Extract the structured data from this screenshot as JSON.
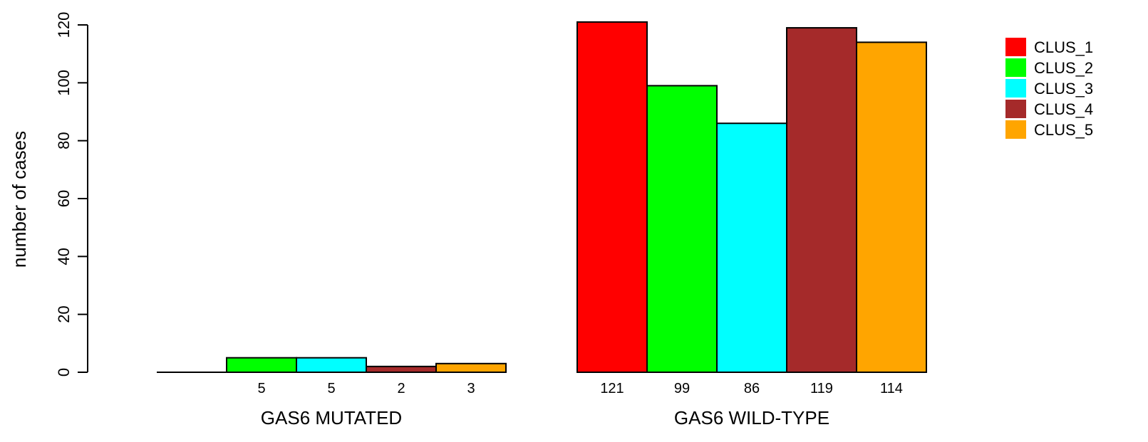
{
  "chart_data": {
    "type": "bar",
    "ylabel": "number of cases",
    "ylim": [
      0,
      120
    ],
    "yticks": [
      0,
      20,
      40,
      60,
      80,
      100,
      120
    ],
    "groups": [
      {
        "label": "GAS6 MUTATED",
        "values": [
          0,
          5,
          5,
          2,
          3
        ],
        "value_labels": [
          "",
          "5",
          "5",
          "2",
          "3"
        ]
      },
      {
        "label": "GAS6 WILD-TYPE",
        "values": [
          121,
          99,
          86,
          119,
          114
        ],
        "value_labels": [
          "121",
          "99",
          "86",
          "119",
          "114"
        ]
      }
    ],
    "series": [
      {
        "name": "CLUS_1",
        "color": "#ff0000"
      },
      {
        "name": "CLUS_2",
        "color": "#00ff00"
      },
      {
        "name": "CLUS_3",
        "color": "#00ffff"
      },
      {
        "name": "CLUS_4",
        "color": "#a52a2a"
      },
      {
        "name": "CLUS_5",
        "color": "#ffa500"
      }
    ],
    "legend_position": "top-right",
    "grid": false
  }
}
